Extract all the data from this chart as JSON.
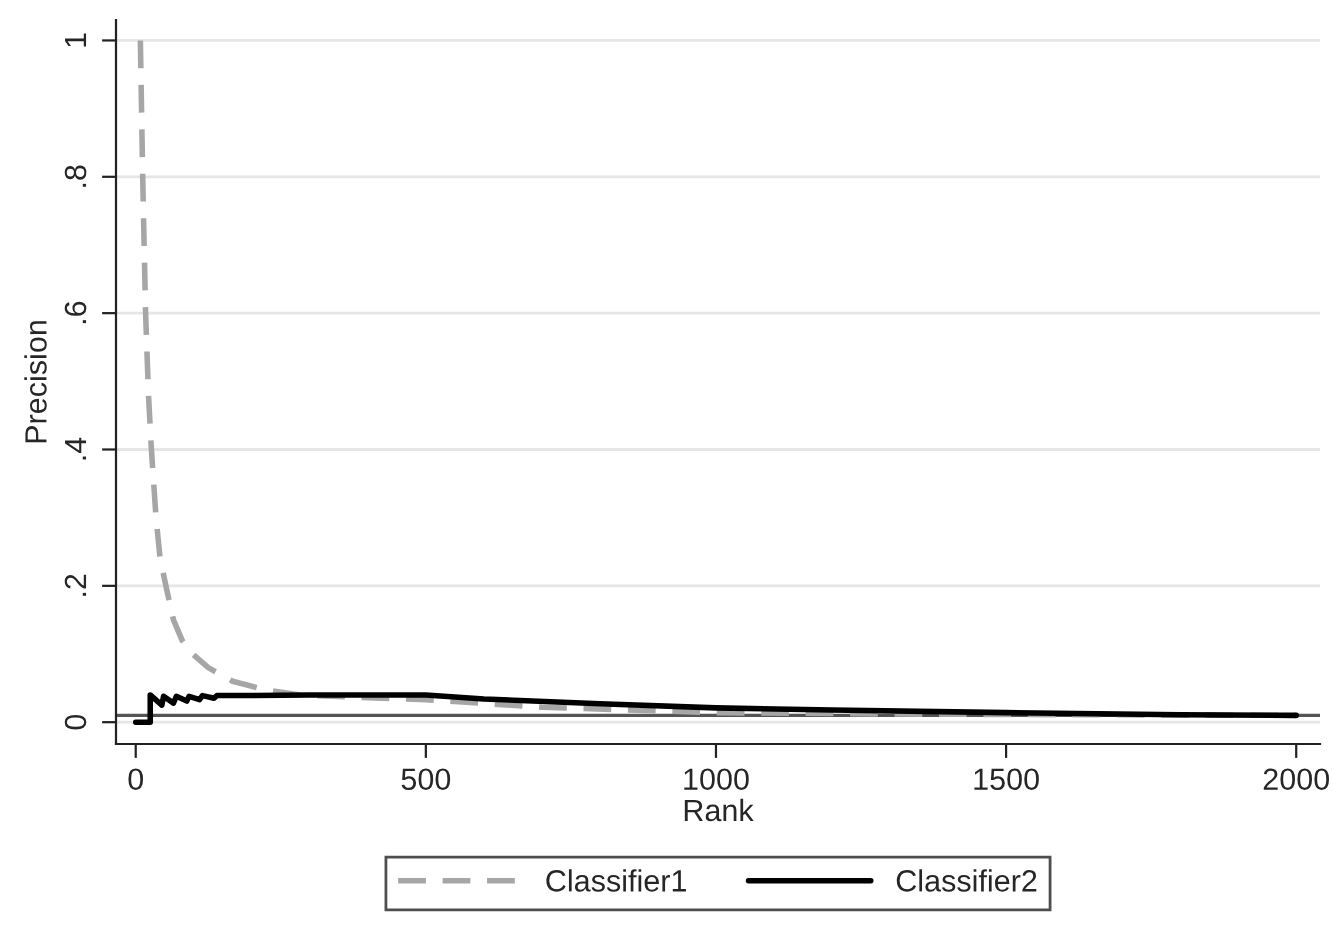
{
  "chart_data": {
    "type": "line",
    "xlabel": "Rank",
    "ylabel": "Precision",
    "xlim": [
      -34,
      2041
    ],
    "ylim": [
      -0.032,
      1.03
    ],
    "xticks": [
      0,
      500,
      1000,
      1500,
      2000
    ],
    "yticks": [
      {
        "value": 0,
        "label": "0"
      },
      {
        "value": 0.2,
        "label": ".2"
      },
      {
        "value": 0.4,
        "label": ".4"
      },
      {
        "value": 0.6,
        "label": ".6"
      },
      {
        "value": 0.8,
        "label": ".8"
      },
      {
        "value": 1,
        "label": "1"
      }
    ],
    "grid": "y",
    "legend": "bottom",
    "ref_lines": [
      {
        "axis": "y",
        "value": 0.01,
        "color": "#555555",
        "line_style": "solid"
      }
    ],
    "series": [
      {
        "name": "Classifier1",
        "color": "#a6a6a6",
        "line_style": "dashed",
        "x": [
          8,
          12,
          17,
          22,
          27,
          35,
          42,
          52,
          65,
          80,
          98,
          125,
          167,
          220,
          283,
          400,
          500,
          700,
          1000,
          1300,
          1600,
          2000
        ],
        "values": [
          1,
          0.8,
          0.6,
          0.48,
          0.4,
          0.3,
          0.24,
          0.2,
          0.15,
          0.12,
          0.1,
          0.08,
          0.06,
          0.048,
          0.04,
          0.036,
          0.033,
          0.022,
          0.014,
          0.012,
          0.011,
          0.01
        ]
      },
      {
        "name": "Classifier2",
        "color": "#000000",
        "line_style": "solid",
        "x": [
          0,
          25,
          25,
          45,
          48,
          65,
          70,
          88,
          92,
          110,
          115,
          135,
          140,
          200,
          300,
          400,
          500,
          600,
          800,
          1000,
          1200,
          1500,
          1800,
          2000
        ],
        "values": [
          0,
          0,
          0.04,
          0.025,
          0.038,
          0.028,
          0.038,
          0.031,
          0.038,
          0.033,
          0.039,
          0.035,
          0.039,
          0.039,
          0.04,
          0.04,
          0.04,
          0.034,
          0.027,
          0.021,
          0.018,
          0.014,
          0.011,
          0.01
        ]
      }
    ]
  }
}
